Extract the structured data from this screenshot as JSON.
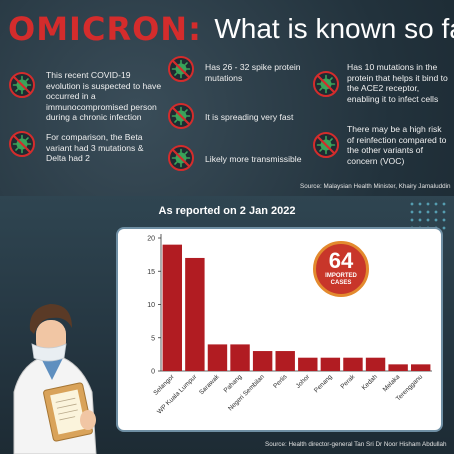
{
  "header": {
    "brand": "OMICRON:",
    "subtitle": "What is known so far"
  },
  "facts": [
    {
      "id": "f1",
      "text": "This recent COVID-19 evolution is suspected to have occurred in a immunocompromised person during a chronic infection"
    },
    {
      "id": "f2",
      "text": "For comparison, the Beta variant had 3 mutations & Delta had 2"
    },
    {
      "id": "f3",
      "text": "Has 26 - 32 spike protein mutations"
    },
    {
      "id": "f4",
      "text": "It is spreading very fast"
    },
    {
      "id": "f5",
      "text": "Likely more transmissible"
    },
    {
      "id": "f6",
      "text": "Has 10 mutations in the protein that helps it bind to the ACE2 receptor, enabling it to infect cells"
    },
    {
      "id": "f7",
      "text": "There may be a high risk of reinfection compared to the other variants of concern (VOC)"
    }
  ],
  "source_top": "Source: Malaysian Health Minister, Khairy Jamaluddin",
  "reported_label": "As reported on 2 Jan 2022",
  "badge": {
    "number": "64",
    "label": "IMPORTED CASES"
  },
  "source_bottom": "Source: Health director-general Tan Sri Dr Noor Hisham Abdullah",
  "colors": {
    "bar": "#b11c22",
    "title_red": "#d42c2c",
    "badge": "#c8362a",
    "badge_ring": "#e38a2e"
  },
  "icons": {
    "virus": "crossed-out-virus-icon",
    "person": "doctor-illustration"
  },
  "chart_data": {
    "type": "bar",
    "categories": [
      "Selangor",
      "WP Kuala Lumpur",
      "Sarawak",
      "Pahang",
      "Negeri Sembilan",
      "Perlis",
      "Johor",
      "Penang",
      "Perak",
      "Kedah",
      "Melaka",
      "Terengganu"
    ],
    "values": [
      19,
      17,
      4,
      4,
      3,
      3,
      2,
      2,
      2,
      2,
      1,
      1
    ],
    "title": "",
    "xlabel": "",
    "ylabel": "",
    "ylim": [
      0,
      20
    ],
    "yticks": [
      0,
      5,
      10,
      15,
      20
    ],
    "grid": false,
    "legend": "none"
  }
}
